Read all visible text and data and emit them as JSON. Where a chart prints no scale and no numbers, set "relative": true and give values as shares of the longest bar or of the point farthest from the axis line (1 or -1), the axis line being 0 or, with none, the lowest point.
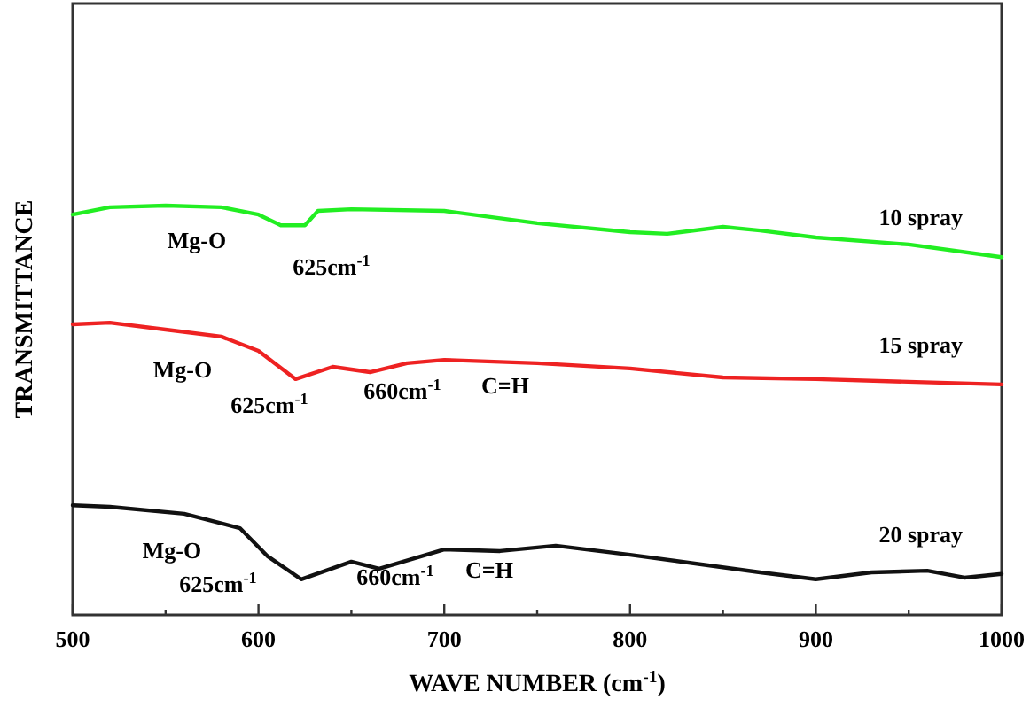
{
  "chart_data": {
    "type": "line",
    "relative": true,
    "xlabel": "WAVE NUMBER (cm$^{-1}$)",
    "ylabel": "TRANSMITTANCE",
    "xlim": [
      500,
      1000
    ],
    "xticks": [
      500,
      {
        "value": 550,
        "label": null
      },
      600,
      {
        "value": 650,
        "label": null
      },
      700,
      {
        "value": 750,
        "label": null
      },
      800,
      {
        "value": 850,
        "label": null
      },
      900,
      {
        "value": 950,
        "label": null
      },
      1000
    ],
    "grid": false,
    "tick_labels": "x",
    "series": [
      {
        "name": "10 spray",
        "color": "#22ee22",
        "x": [
          500,
          520,
          550,
          580,
          600,
          612,
          625,
          632,
          650,
          700,
          750,
          800,
          820,
          850,
          870,
          900,
          950,
          1000
        ],
        "values": [
          0.978,
          0.996,
          1,
          0.996,
          0.978,
          0.952,
          0.952,
          0.987,
          0.991,
          0.987,
          0.957,
          0.935,
          0.931,
          0.948,
          0.939,
          0.922,
          0.905,
          0.874
        ]
      },
      {
        "name": "15 spray",
        "color": "#ee2222",
        "x": [
          500,
          520,
          550,
          580,
          600,
          620,
          640,
          660,
          680,
          700,
          750,
          800,
          850,
          900,
          1000
        ],
        "values": [
          0.71,
          0.714,
          0.697,
          0.68,
          0.645,
          0.576,
          0.606,
          0.593,
          0.615,
          0.623,
          0.615,
          0.602,
          0.58,
          0.576,
          0.563
        ]
      },
      {
        "name": "20 spray",
        "color": "#111111",
        "x": [
          500,
          520,
          560,
          590,
          605,
          623,
          650,
          665,
          700,
          730,
          760,
          800,
          870,
          900,
          930,
          960,
          980,
          1000
        ],
        "values": [
          0.268,
          0.264,
          0.247,
          0.212,
          0.143,
          0.087,
          0.13,
          0.113,
          0.16,
          0.156,
          0.169,
          0.147,
          0.104,
          0.087,
          0.104,
          0.108,
          0.091,
          0.1
        ]
      }
    ],
    "annotations": [
      "Mg-O",
      "625cm$^{-1}$",
      "Mg-O",
      "625cm$^{-1}$",
      "660cm$^{-1}$",
      "C=H",
      "Mg-O",
      "625cm$^{-1}$",
      "660cm$^{-1}$",
      "C=H"
    ]
  }
}
